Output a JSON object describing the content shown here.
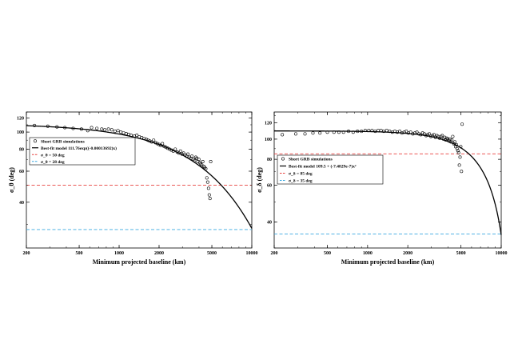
{
  "chart_data": [
    {
      "type": "scatter",
      "xscale": "log",
      "yscale": "log",
      "xlim": [
        200,
        10000
      ],
      "ylim": [
        22,
        130
      ],
      "xticks": [
        200,
        500,
        1000,
        2000,
        5000,
        10000
      ],
      "xtick_labels": [
        "200",
        "500",
        "1000",
        "2000",
        "5000",
        "10000"
      ],
      "yticks": [
        40,
        60,
        80,
        100,
        120
      ],
      "ytick_labels": [
        "40",
        "60",
        "80",
        "100",
        "120"
      ],
      "xlabel": "Minimum projected baseline (km)",
      "ylabel": "σ_θ (deg)",
      "legend_position": "upper-left",
      "legend": [
        "Short GRB simulations",
        "Best-fit model  111.76exp((-0.00013692)x)",
        "σ_θ = 50 deg",
        "σ_θ = 28 deg"
      ],
      "model": {
        "kind": "exp",
        "a": 111.76,
        "b": -0.00013692
      },
      "hlines": [
        {
          "y": 50,
          "color": "#e8413e"
        },
        {
          "y": 28,
          "color": "#3aa8e0"
        }
      ],
      "points": {
        "x": [
          230,
          290,
          340,
          390,
          450,
          520,
          580,
          620,
          680,
          740,
          780,
          830,
          880,
          930,
          980,
          1030,
          1080,
          1130,
          1180,
          1230,
          1300,
          1360,
          1420,
          1480,
          1540,
          1600,
          1650,
          1700,
          1760,
          1820,
          1880,
          1940,
          2000,
          2060,
          2120,
          2180,
          2250,
          2320,
          2400,
          2480,
          2560,
          2650,
          2740,
          2820,
          2900,
          2980,
          3060,
          3140,
          3220,
          3300,
          3380,
          3460,
          3540,
          3620,
          3700,
          3780,
          3850,
          3920,
          3990,
          4060,
          4130,
          4200,
          4270,
          4340,
          4420,
          4500,
          4580,
          4650,
          4720,
          4780,
          4840,
          4900
        ],
        "y": [
          109,
          108,
          107,
          106,
          105,
          104,
          102,
          106,
          105,
          104,
          103,
          104,
          103,
          101,
          102,
          100,
          99,
          98,
          97,
          96,
          95,
          96,
          94,
          93,
          92,
          91,
          90,
          89,
          88,
          90,
          87,
          86,
          85,
          84,
          86,
          83,
          82,
          81,
          80,
          79,
          78,
          80,
          77,
          76,
          78,
          75,
          76,
          74,
          73,
          75,
          72,
          71,
          73,
          70,
          69,
          72,
          71,
          68,
          70,
          67,
          66,
          65,
          68,
          64,
          63,
          62,
          55,
          52,
          48,
          44,
          42,
          68
        ]
      }
    },
    {
      "type": "scatter",
      "xscale": "log",
      "yscale": "log",
      "xlim": [
        200,
        10000
      ],
      "ylim": [
        30,
        135
      ],
      "xticks": [
        200,
        500,
        1000,
        2000,
        5000,
        10000
      ],
      "xtick_labels": [
        "200",
        "500",
        "1000",
        "2000",
        "5000",
        "10000"
      ],
      "yticks": [
        40,
        60,
        80,
        100,
        120
      ],
      "ytick_labels": [
        "40",
        "60",
        "80",
        "100",
        "120"
      ],
      "xlabel": "Minimum projected baseline (km)",
      "ylabel": "σ_δ (deg)",
      "legend_position": "upper-left",
      "legend": [
        "Short GRB simulations",
        "Best-fit model  109.5 + (-7.4829e-7)x²",
        "σ_δ = 85 deg",
        "σ_δ = 35 deg"
      ],
      "model": {
        "kind": "quad",
        "a": 109.5,
        "b": -7.4829e-07
      },
      "hlines": [
        {
          "y": 85,
          "color": "#e8413e"
        },
        {
          "y": 35,
          "color": "#3aa8e0"
        }
      ],
      "points": {
        "x": [
          230,
          290,
          340,
          390,
          440,
          500,
          560,
          610,
          660,
          720,
          780,
          840,
          900,
          960,
          1020,
          1080,
          1140,
          1200,
          1260,
          1320,
          1390,
          1460,
          1530,
          1600,
          1670,
          1740,
          1810,
          1880,
          1950,
          2020,
          2100,
          2180,
          2260,
          2340,
          2420,
          2500,
          2580,
          2660,
          2740,
          2820,
          2900,
          2980,
          3060,
          3140,
          3220,
          3300,
          3380,
          3460,
          3540,
          3620,
          3700,
          3780,
          3850,
          3920,
          3990,
          4060,
          4130,
          4200,
          4270,
          4340,
          4420,
          4500,
          4560,
          4620,
          4680,
          4740,
          4800,
          4860,
          4920,
          4980,
          5040,
          5100
        ],
        "y": [
          105,
          106,
          106,
          107,
          107,
          108,
          108,
          108,
          108,
          109,
          108,
          109,
          109,
          110,
          110,
          110,
          109,
          110,
          110,
          109,
          110,
          109,
          108,
          109,
          108,
          109,
          107,
          108,
          109,
          107,
          108,
          106,
          107,
          108,
          106,
          105,
          107,
          106,
          104,
          105,
          106,
          103,
          104,
          105,
          102,
          104,
          103,
          101,
          103,
          104,
          100,
          102,
          99,
          101,
          100,
          98,
          100,
          97,
          99,
          103,
          95,
          97,
          92,
          94,
          90,
          88,
          86,
          75,
          82,
          92,
          70,
          118
        ]
      }
    }
  ]
}
